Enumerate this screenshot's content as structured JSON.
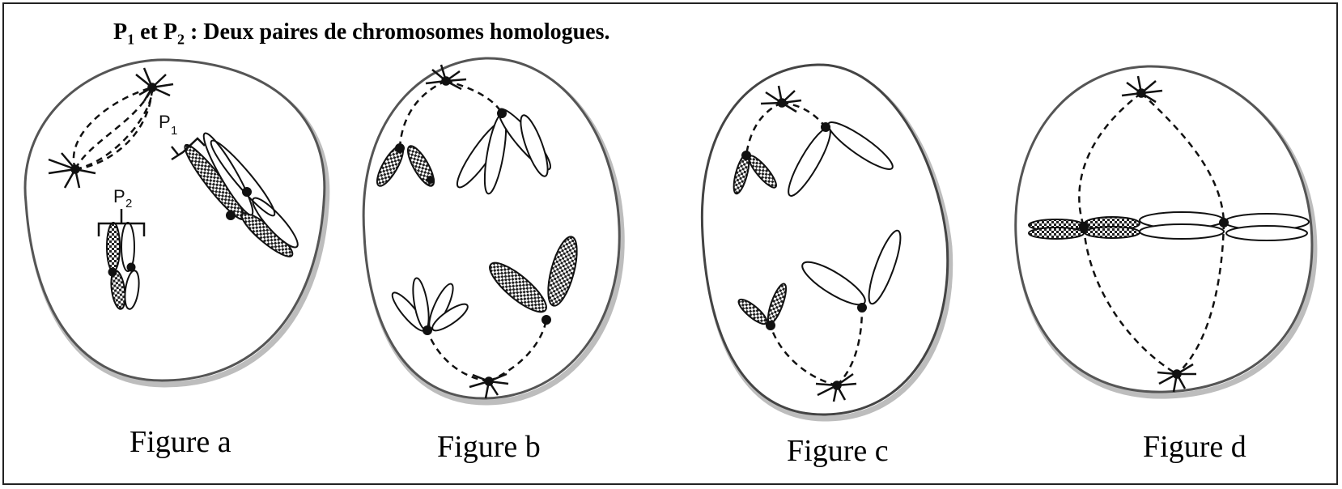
{
  "heading": {
    "p1_letter": "P",
    "p1_sub": "1",
    "connector": " et ",
    "p2_letter": "P",
    "p2_sub": "2",
    "rest": " : Deux paires de chromosomes homologues."
  },
  "labels": {
    "p1_letter": "P",
    "p1_sub": "1",
    "p2_letter": "P",
    "p2_sub": "2"
  },
  "captions": {
    "a": "Figure a",
    "b": "Figure b",
    "c": "Figure c",
    "d": "Figure d"
  },
  "colors": {
    "outline": "#555555",
    "shadow": "#bdbdbd",
    "ink": "#111111",
    "dotted_fill": "#222222"
  }
}
